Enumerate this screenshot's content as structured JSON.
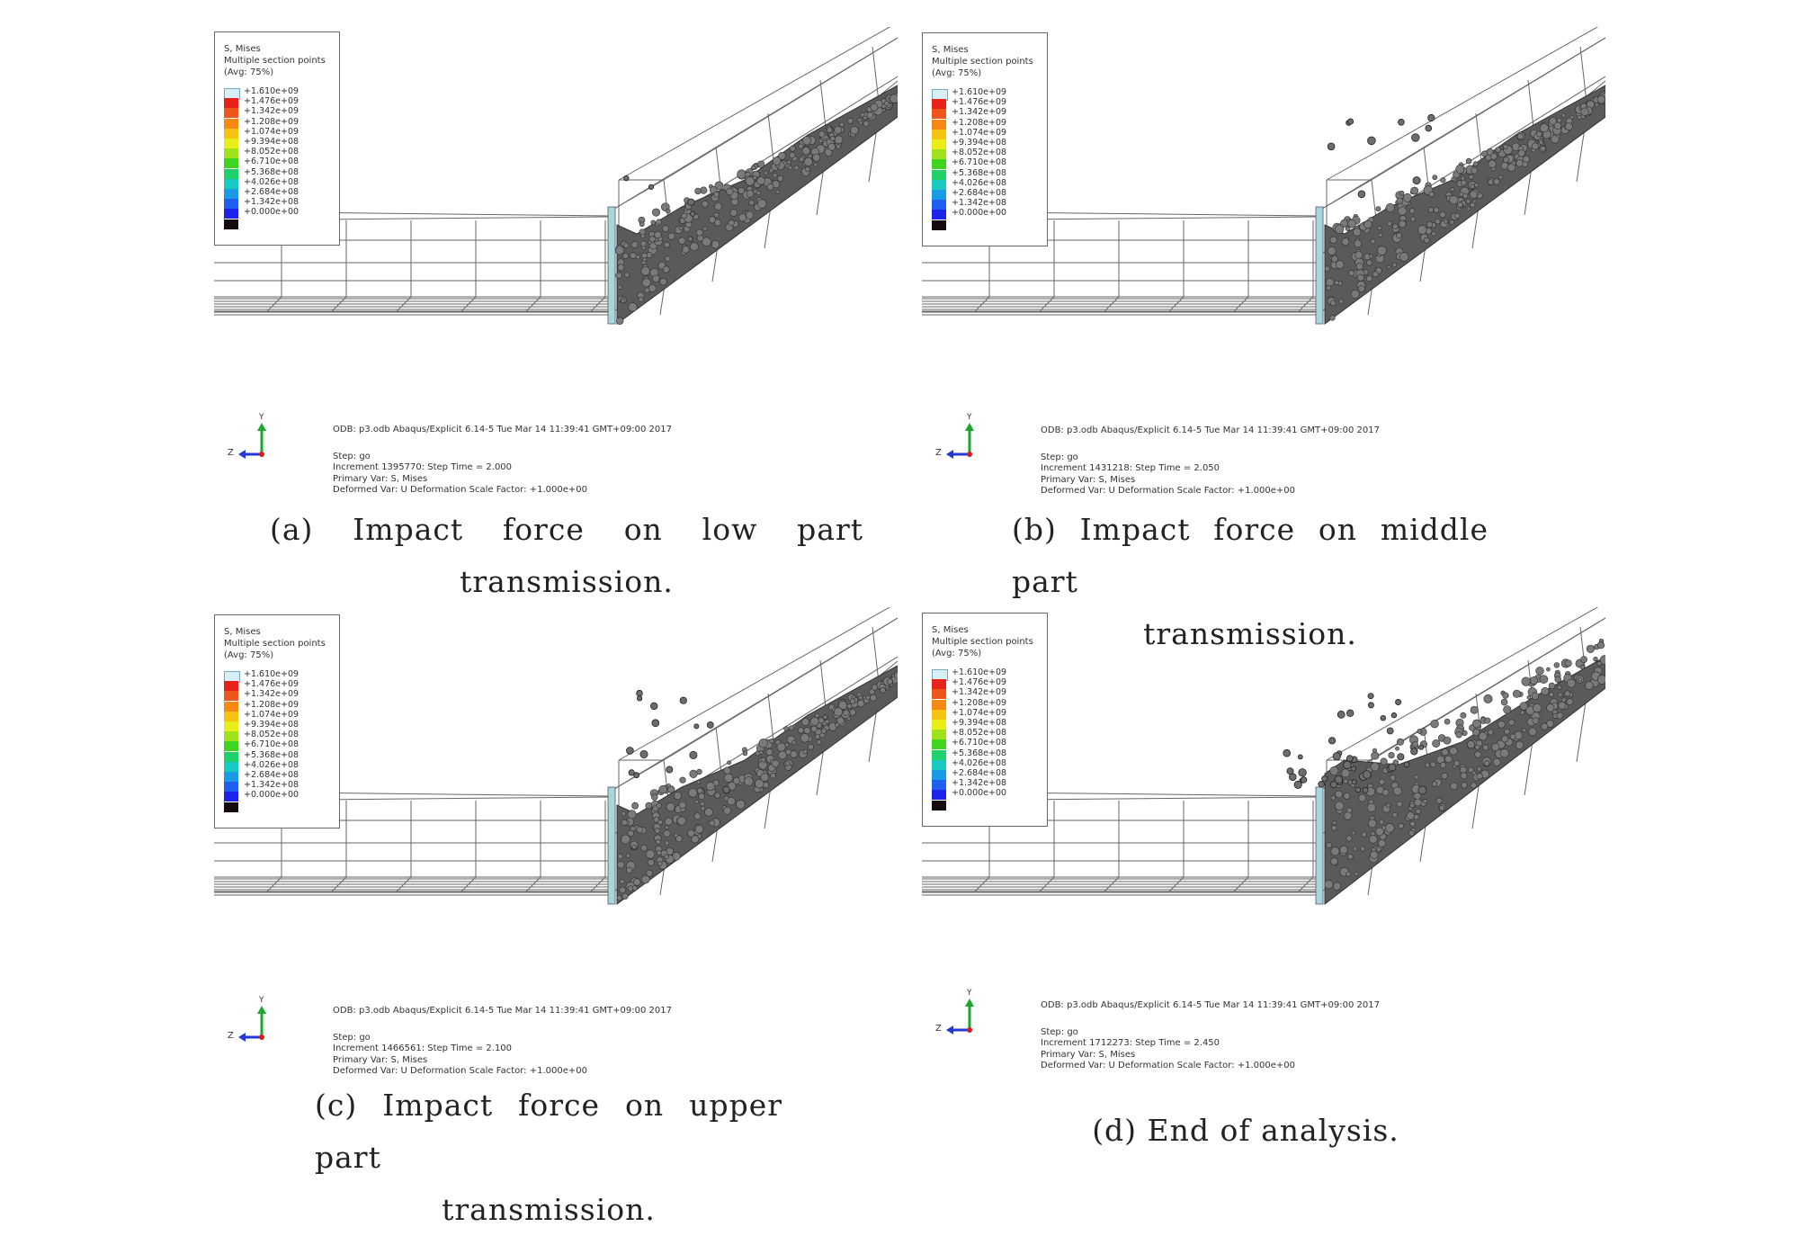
{
  "legend": {
    "title_lines": [
      "S, Mises",
      "Multiple section points",
      "(Avg: 75%)"
    ],
    "values": [
      "+1.610e+09",
      "+1.476e+09",
      "+1.342e+09",
      "+1.208e+09",
      "+1.074e+09",
      "+9.394e+08",
      "+8.052e+08",
      "+6.710e+08",
      "+5.368e+08",
      "+4.026e+08",
      "+2.684e+08",
      "+1.342e+08",
      "+0.000e+00"
    ],
    "colors": [
      "#d7f0f6",
      "#e8221b",
      "#f0561b",
      "#f48a14",
      "#f6c313",
      "#e8ee16",
      "#9fe11a",
      "#3fd41f",
      "#1fd06b",
      "#18cbc0",
      "#1a9be6",
      "#1e5ff2",
      "#1d23ea",
      "#150a0c"
    ]
  },
  "triad": {
    "y": "Y",
    "z": "Z"
  },
  "panels": [
    {
      "id": "a",
      "odb_line": "ODB: p3.odb    Abaqus/Explicit 6.14-5    Tue Mar 14 11:39:41 GMT+09:00 2017",
      "step_line": "Step: go",
      "increment_line": "Increment    1395770: Step Time =    2.000",
      "primary_line": "Primary Var: S, Mises",
      "deformed_line": "Deformed Var: U   Deformation Scale Factor: +1.000e+00",
      "caption_line1": "(a) Impact force on low part",
      "caption_line2": "transmission."
    },
    {
      "id": "b",
      "odb_line": "ODB: p3.odb    Abaqus/Explicit 6.14-5    Tue Mar 14 11:39:41 GMT+09:00 2017",
      "step_line": "Step: go",
      "increment_line": "Increment    1431218: Step Time =    2.050",
      "primary_line": "Primary Var: S, Mises",
      "deformed_line": "Deformed Var: U   Deformation Scale Factor: +1.000e+00",
      "caption_line1": "(b) Impact force on middle part",
      "caption_line2": "transmission."
    },
    {
      "id": "c",
      "odb_line": "ODB: p3.odb    Abaqus/Explicit 6.14-5    Tue Mar 14 11:39:41 GMT+09:00 2017",
      "step_line": "Step: go",
      "increment_line": "Increment    1466561: Step Time =    2.100",
      "primary_line": "Primary Var: S, Mises",
      "deformed_line": "Deformed Var: U   Deformation Scale Factor: +1.000e+00",
      "caption_line1": "(c) Impact force on upper part",
      "caption_line2": "transmission."
    },
    {
      "id": "d",
      "odb_line": "ODB: p3.odb    Abaqus/Explicit 6.14-5    Tue Mar 14 11:39:41 GMT+09:00 2017",
      "step_line": "Step: go",
      "increment_line": "Increment    1712273: Step Time =    2.450",
      "primary_line": "Primary Var: S, Mises",
      "deformed_line": "Deformed Var: U   Deformation Scale Factor: +1.000e+00",
      "caption_line1": "(d) End of analysis.",
      "caption_line2": ""
    }
  ]
}
